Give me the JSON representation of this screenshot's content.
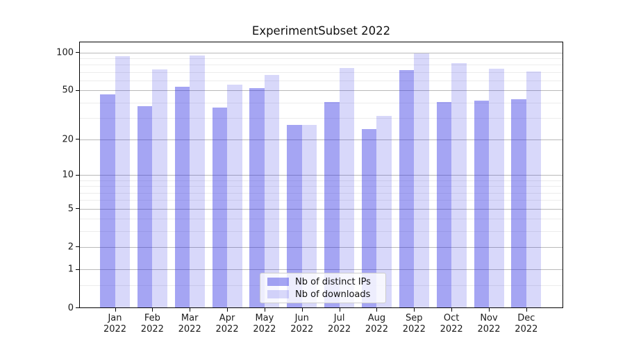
{
  "chart_data": {
    "type": "bar",
    "title": "ExperimentSubset 2022",
    "categories": [
      "Jan",
      "Feb",
      "Mar",
      "Apr",
      "May",
      "Jun",
      "Jul",
      "Aug",
      "Sep",
      "Oct",
      "Nov",
      "Dec"
    ],
    "category_year": "2022",
    "series": [
      {
        "name": "Nb of distinct IPs",
        "values": [
          46,
          37,
          53,
          36,
          52,
          26,
          40,
          24,
          72,
          40,
          41,
          42
        ],
        "color": "rgba(41,41,226,0.42)",
        "color_hex": "#a5a5f2"
      },
      {
        "name": "Nb of downloads",
        "values": [
          93,
          73,
          94,
          55,
          66,
          26,
          75,
          31,
          98,
          82,
          74,
          70
        ],
        "color": "rgba(41,41,226,0.18)",
        "color_hex": "#d9d9f8"
      }
    ],
    "yscale": "log1p",
    "ylim": [
      0,
      122
    ],
    "yticks_major": [
      0,
      1,
      2,
      5,
      10,
      20,
      50,
      100
    ],
    "yticks_minor": [
      0.5,
      3,
      4,
      6,
      7,
      8,
      9,
      30,
      40,
      60,
      70,
      80,
      90
    ],
    "xlabel": "",
    "ylabel": "",
    "grid": true,
    "legend_position": "lower center"
  },
  "colors": {
    "grid_major": "#b9b9b9",
    "grid_minor": "#ececec",
    "axis": "#000000",
    "background": "#ffffff",
    "legend_border": "#cccccc"
  }
}
